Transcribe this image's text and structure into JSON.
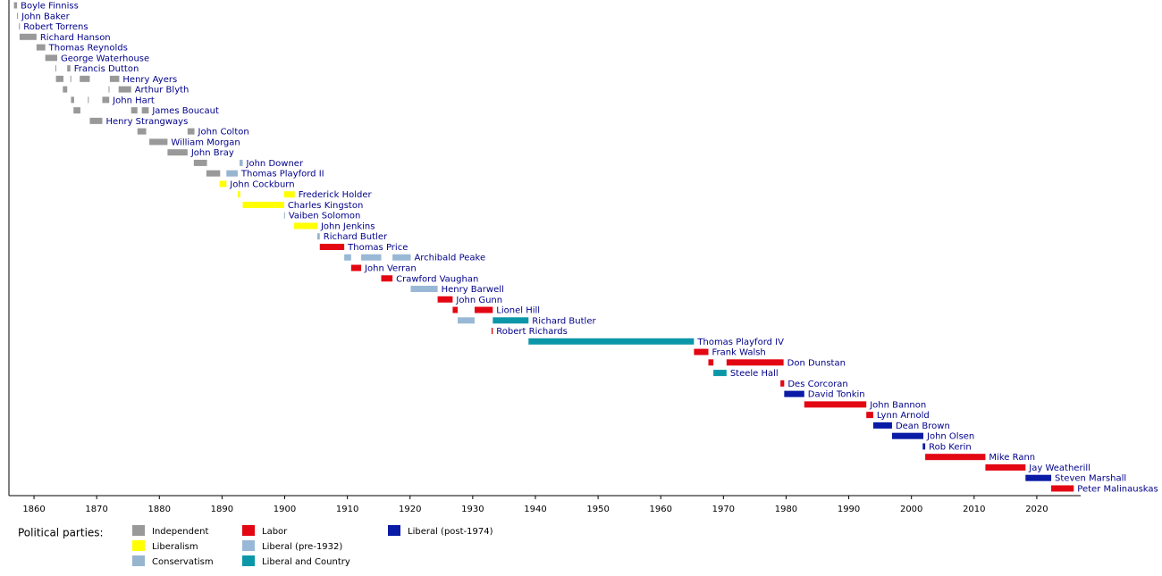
{
  "chart_data": {
    "type": "timeline",
    "xlim": [
      1856,
      2027
    ],
    "xticks": [
      1860,
      1870,
      1880,
      1890,
      1900,
      1910,
      1920,
      1930,
      1940,
      1950,
      1960,
      1970,
      1980,
      1990,
      2000,
      2010,
      2020
    ],
    "legend_title": "Political parties:",
    "parties": [
      {
        "name": "Independent",
        "color": "#999999"
      },
      {
        "name": "Liberalism",
        "color": "#ffff00"
      },
      {
        "name": "Conservatism",
        "color": "#97b5cf"
      },
      {
        "name": "Labor",
        "color": "#e30613"
      },
      {
        "name": "Liberal (pre-1932)",
        "color": "#99b8d6"
      },
      {
        "name": "Liberal and Country",
        "color": "#0b97a8"
      },
      {
        "name": "Liberal (post-1974)",
        "color": "#0a1ba5"
      }
    ],
    "rows": [
      {
        "name": "Boyle Finniss",
        "terms": [
          {
            "start": 1856.8,
            "end": 1857.3,
            "party": "Independent"
          }
        ]
      },
      {
        "name": "John Baker",
        "terms": [
          {
            "start": 1857.3,
            "end": 1857.4,
            "party": "Independent"
          }
        ]
      },
      {
        "name": "Robert Torrens",
        "terms": [
          {
            "start": 1857.6,
            "end": 1857.7,
            "party": "Independent"
          }
        ]
      },
      {
        "name": "Richard Hanson",
        "terms": [
          {
            "start": 1857.7,
            "end": 1860.4,
            "party": "Independent"
          }
        ]
      },
      {
        "name": "Thomas Reynolds",
        "terms": [
          {
            "start": 1860.4,
            "end": 1861.8,
            "party": "Independent"
          }
        ]
      },
      {
        "name": "George Waterhouse",
        "terms": [
          {
            "start": 1861.8,
            "end": 1863.7,
            "party": "Independent"
          }
        ]
      },
      {
        "name": "Francis Dutton",
        "terms": [
          {
            "start": 1863.4,
            "end": 1863.5,
            "party": "Independent"
          },
          {
            "start": 1865.3,
            "end": 1865.8,
            "party": "Independent"
          }
        ]
      },
      {
        "name": "Henry Ayers",
        "terms": [
          {
            "start": 1863.5,
            "end": 1864.7,
            "party": "Independent"
          },
          {
            "start": 1865.8,
            "end": 1865.9,
            "party": "Independent"
          },
          {
            "start": 1867.3,
            "end": 1868.9,
            "party": "Independent"
          },
          {
            "start": 1872.1,
            "end": 1873.6,
            "party": "Independent"
          }
        ]
      },
      {
        "name": "Arthur Blyth",
        "terms": [
          {
            "start": 1864.6,
            "end": 1865.3,
            "party": "Independent"
          },
          {
            "start": 1871.9,
            "end": 1872.0,
            "party": "Independent"
          },
          {
            "start": 1873.5,
            "end": 1875.5,
            "party": "Independent"
          }
        ]
      },
      {
        "name": "John Hart",
        "terms": [
          {
            "start": 1865.9,
            "end": 1866.4,
            "party": "Independent"
          },
          {
            "start": 1868.6,
            "end": 1868.7,
            "party": "Independent"
          },
          {
            "start": 1870.9,
            "end": 1872.0,
            "party": "Independent"
          }
        ]
      },
      {
        "name": "James Boucaut",
        "terms": [
          {
            "start": 1866.3,
            "end": 1867.4,
            "party": "Independent"
          },
          {
            "start": 1875.5,
            "end": 1876.5,
            "party": "Independent"
          },
          {
            "start": 1877.2,
            "end": 1878.3,
            "party": "Independent"
          }
        ]
      },
      {
        "name": "Henry Strangways",
        "terms": [
          {
            "start": 1868.9,
            "end": 1870.9,
            "party": "Independent"
          }
        ]
      },
      {
        "name": "John Colton",
        "terms": [
          {
            "start": 1876.5,
            "end": 1877.9,
            "party": "Independent"
          },
          {
            "start": 1884.5,
            "end": 1885.6,
            "party": "Independent"
          }
        ]
      },
      {
        "name": "William Morgan",
        "terms": [
          {
            "start": 1878.4,
            "end": 1881.3,
            "party": "Independent"
          }
        ]
      },
      {
        "name": "John Bray",
        "terms": [
          {
            "start": 1881.3,
            "end": 1884.5,
            "party": "Independent"
          }
        ]
      },
      {
        "name": "John Downer",
        "terms": [
          {
            "start": 1885.5,
            "end": 1887.6,
            "party": "Independent"
          },
          {
            "start": 1892.8,
            "end": 1893.3,
            "party": "Conservatism"
          }
        ]
      },
      {
        "name": "Thomas Playford II",
        "terms": [
          {
            "start": 1887.5,
            "end": 1889.7,
            "party": "Independent"
          },
          {
            "start": 1890.7,
            "end": 1892.5,
            "party": "Conservatism"
          }
        ]
      },
      {
        "name": "John Cockburn",
        "terms": [
          {
            "start": 1889.6,
            "end": 1890.7,
            "party": "Liberalism"
          }
        ]
      },
      {
        "name": "Frederick Holder",
        "terms": [
          {
            "start": 1892.5,
            "end": 1892.9,
            "party": "Liberalism"
          },
          {
            "start": 1899.9,
            "end": 1901.6,
            "party": "Liberalism"
          }
        ]
      },
      {
        "name": "Charles Kingston",
        "terms": [
          {
            "start": 1893.3,
            "end": 1899.9,
            "party": "Liberalism"
          }
        ]
      },
      {
        "name": "Vaiben Solomon",
        "terms": [
          {
            "start": 1899.9,
            "end": 1900.0,
            "party": "Conservatism"
          }
        ]
      },
      {
        "name": "John Jenkins",
        "terms": [
          {
            "start": 1901.5,
            "end": 1905.2,
            "party": "Liberalism"
          }
        ]
      },
      {
        "name": "Richard Butler",
        "terms": [
          {
            "start": 1905.2,
            "end": 1905.6,
            "party": "Conservatism"
          }
        ]
      },
      {
        "name": "Thomas Price",
        "terms": [
          {
            "start": 1905.6,
            "end": 1909.5,
            "party": "Labor"
          }
        ]
      },
      {
        "name": "Archibald Peake",
        "terms": [
          {
            "start": 1909.5,
            "end": 1910.6,
            "party": "Liberal (pre-1932)"
          },
          {
            "start": 1912.2,
            "end": 1915.4,
            "party": "Liberal (pre-1932)"
          },
          {
            "start": 1917.2,
            "end": 1920.1,
            "party": "Liberal (pre-1932)"
          }
        ]
      },
      {
        "name": "John Verran",
        "terms": [
          {
            "start": 1910.6,
            "end": 1912.2,
            "party": "Labor"
          }
        ]
      },
      {
        "name": "Crawford Vaughan",
        "terms": [
          {
            "start": 1915.4,
            "end": 1917.2,
            "party": "Labor"
          }
        ]
      },
      {
        "name": "Henry Barwell",
        "terms": [
          {
            "start": 1920.1,
            "end": 1924.4,
            "party": "Liberal (pre-1932)"
          }
        ]
      },
      {
        "name": "John Gunn",
        "terms": [
          {
            "start": 1924.4,
            "end": 1926.8,
            "party": "Labor"
          }
        ]
      },
      {
        "name": "Lionel Hill",
        "terms": [
          {
            "start": 1926.8,
            "end": 1927.6,
            "party": "Labor"
          },
          {
            "start": 1930.3,
            "end": 1933.2,
            "party": "Labor"
          }
        ]
      },
      {
        "name": "Richard Butler",
        "terms": [
          {
            "start": 1927.6,
            "end": 1930.3,
            "party": "Liberal (pre-1932)"
          },
          {
            "start": 1933.2,
            "end": 1938.9,
            "party": "Liberal and Country"
          }
        ]
      },
      {
        "name": "Robert Richards",
        "terms": [
          {
            "start": 1933.0,
            "end": 1933.2,
            "party": "Labor"
          }
        ]
      },
      {
        "name": "Thomas Playford IV",
        "terms": [
          {
            "start": 1938.9,
            "end": 1965.3,
            "party": "Liberal and Country"
          }
        ]
      },
      {
        "name": "Frank Walsh",
        "terms": [
          {
            "start": 1965.3,
            "end": 1967.6,
            "party": "Labor"
          }
        ]
      },
      {
        "name": "Don Dunstan",
        "terms": [
          {
            "start": 1967.6,
            "end": 1968.4,
            "party": "Labor"
          },
          {
            "start": 1970.5,
            "end": 1979.6,
            "party": "Labor"
          }
        ]
      },
      {
        "name": "Steele Hall",
        "terms": [
          {
            "start": 1968.4,
            "end": 1970.5,
            "party": "Liberal and Country"
          }
        ]
      },
      {
        "name": "Des Corcoran",
        "terms": [
          {
            "start": 1979.1,
            "end": 1979.7,
            "party": "Labor"
          }
        ]
      },
      {
        "name": "David Tonkin",
        "terms": [
          {
            "start": 1979.7,
            "end": 1982.9,
            "party": "Liberal (post-1974)"
          }
        ]
      },
      {
        "name": "John Bannon",
        "terms": [
          {
            "start": 1982.9,
            "end": 1992.8,
            "party": "Labor"
          }
        ]
      },
      {
        "name": "Lynn Arnold",
        "terms": [
          {
            "start": 1992.8,
            "end": 1993.9,
            "party": "Labor"
          }
        ]
      },
      {
        "name": "Dean Brown",
        "terms": [
          {
            "start": 1993.9,
            "end": 1996.9,
            "party": "Liberal (post-1974)"
          }
        ]
      },
      {
        "name": "John Olsen",
        "terms": [
          {
            "start": 1996.9,
            "end": 2001.9,
            "party": "Liberal (post-1974)"
          }
        ]
      },
      {
        "name": "Rob Kerin",
        "terms": [
          {
            "start": 2001.8,
            "end": 2002.2,
            "party": "Liberal (post-1974)"
          }
        ]
      },
      {
        "name": "Mike Rann",
        "terms": [
          {
            "start": 2002.2,
            "end": 2011.8,
            "party": "Labor"
          }
        ]
      },
      {
        "name": "Jay Weatherill",
        "terms": [
          {
            "start": 2011.8,
            "end": 2018.2,
            "party": "Labor"
          }
        ]
      },
      {
        "name": "Steven Marshall",
        "terms": [
          {
            "start": 2018.2,
            "end": 2022.3,
            "party": "Liberal (post-1974)"
          }
        ]
      },
      {
        "name": "Peter Malinauskas",
        "terms": [
          {
            "start": 2022.3,
            "end": 2025.9,
            "party": "Labor"
          }
        ]
      }
    ]
  }
}
